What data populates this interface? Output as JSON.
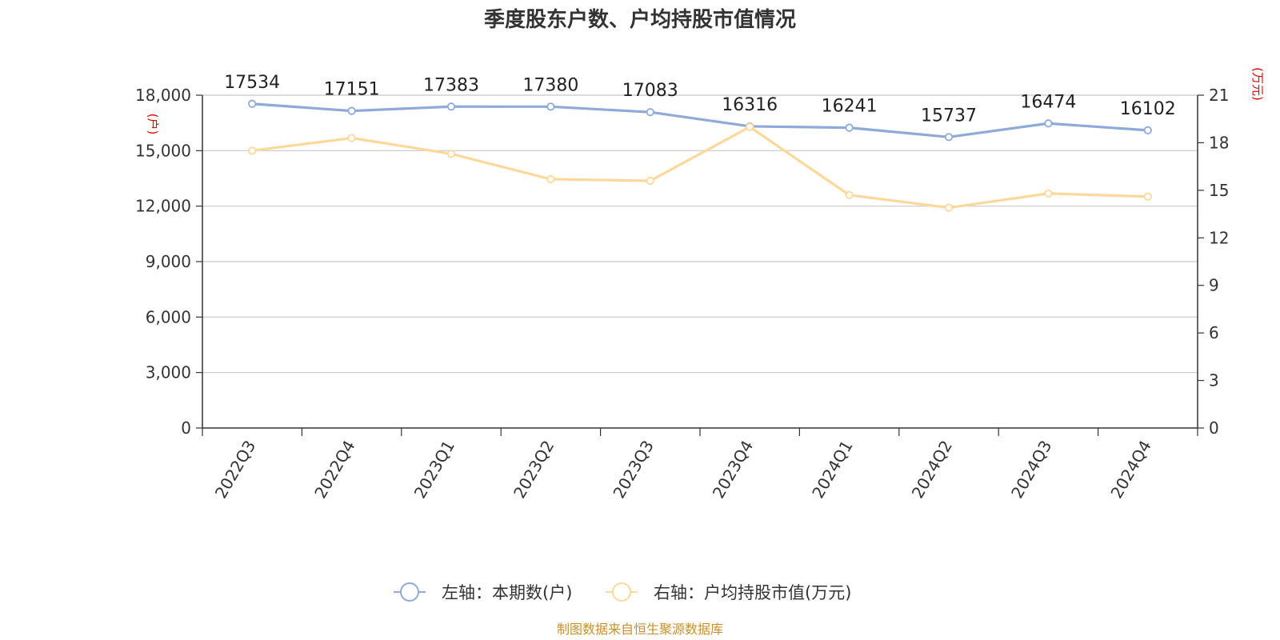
{
  "chart_data": {
    "type": "line",
    "title": "季度股东户数、户均持股市值情况",
    "categories": [
      "2022Q3",
      "2022Q4",
      "2023Q1",
      "2023Q2",
      "2023Q3",
      "2023Q4",
      "2024Q1",
      "2024Q2",
      "2024Q3",
      "2024Q4"
    ],
    "series": [
      {
        "name": "左轴：本期数(户)",
        "axis": "left",
        "color": "#8eaadb",
        "values": [
          17534,
          17151,
          17383,
          17380,
          17083,
          16316,
          16241,
          15737,
          16474,
          16102
        ],
        "labels": [
          "17534",
          "17151",
          "17383",
          "17380",
          "17083",
          "16316",
          "16241",
          "15737",
          "16474",
          "16102"
        ]
      },
      {
        "name": "右轴：户均持股市值(万元)",
        "axis": "right",
        "color": "#fdd89a",
        "values": [
          17.5,
          18.3,
          17.3,
          15.7,
          15.6,
          19.0,
          14.7,
          13.9,
          14.8,
          14.6
        ]
      }
    ],
    "left_axis": {
      "unit": "(户)",
      "min": 0,
      "max": 18000,
      "ticks": [
        "0",
        "3,000",
        "6,000",
        "9,000",
        "12,000",
        "15,000",
        "18,000"
      ]
    },
    "right_axis": {
      "unit": "(万元)",
      "min": 0,
      "max": 21,
      "ticks": [
        "0",
        "3",
        "6",
        "9",
        "12",
        "15",
        "18",
        "21"
      ]
    },
    "grid": true,
    "legend_position": "bottom",
    "source": "制图数据来自恒生聚源数据库"
  }
}
